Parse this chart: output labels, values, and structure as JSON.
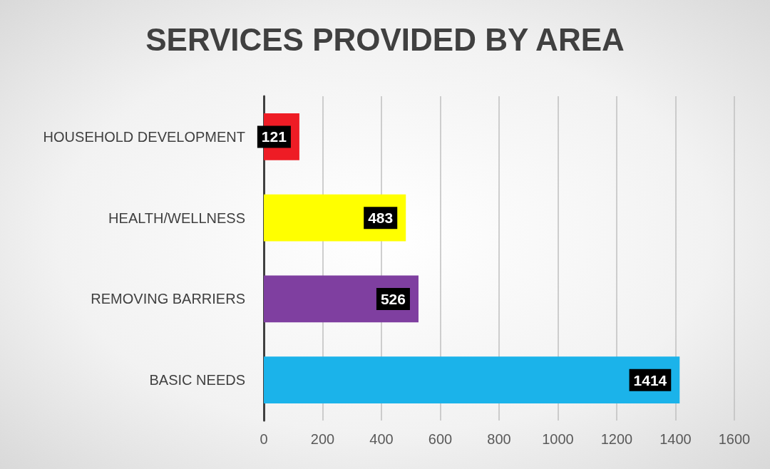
{
  "chart_data": {
    "type": "bar",
    "title": "SERVICES PROVIDED BY AREA",
    "orientation": "horizontal",
    "categories": [
      "HOUSEHOLD DEVELOPMENT",
      "HEALTH/WELLNESS",
      "REMOVING BARRIERS",
      "BASIC NEEDS"
    ],
    "values": [
      121,
      483,
      526,
      1414
    ],
    "colors": [
      "#ee1c25",
      "#ffff00",
      "#7f3fa0",
      "#1bb3ea"
    ],
    "xlim": [
      0,
      1600
    ],
    "xticks": [
      0,
      200,
      400,
      600,
      800,
      1000,
      1200,
      1400,
      1600
    ],
    "grid": "x",
    "data_labels": true
  }
}
